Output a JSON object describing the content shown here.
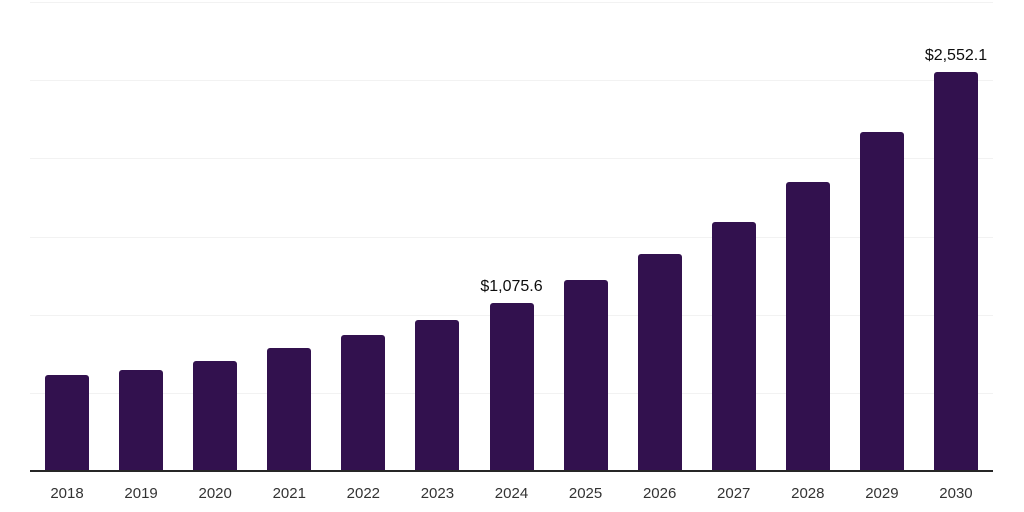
{
  "chart_data": {
    "type": "bar",
    "title": "",
    "xlabel": "",
    "ylabel": "",
    "categories": [
      "2018",
      "2019",
      "2020",
      "2021",
      "2022",
      "2023",
      "2024",
      "2025",
      "2026",
      "2027",
      "2028",
      "2029",
      "2030"
    ],
    "values": [
      613,
      645,
      706,
      784,
      873,
      963,
      1075.6,
      1223,
      1385,
      1590,
      1850,
      2169,
      2552.1
    ],
    "data_labels": [
      {
        "index": 6,
        "text": "$1,075.6"
      },
      {
        "index": 12,
        "text": "$2,552.1"
      }
    ],
    "ylim": [
      0,
      3000
    ],
    "grid_step": 500,
    "grid": true,
    "legend_position": "none",
    "colors": {
      "bar": "#32114e",
      "axis_line": "#262626",
      "gridline": "#f2f2f2",
      "x_tick_label": "#333333",
      "data_label": "#0d0d0d"
    }
  }
}
